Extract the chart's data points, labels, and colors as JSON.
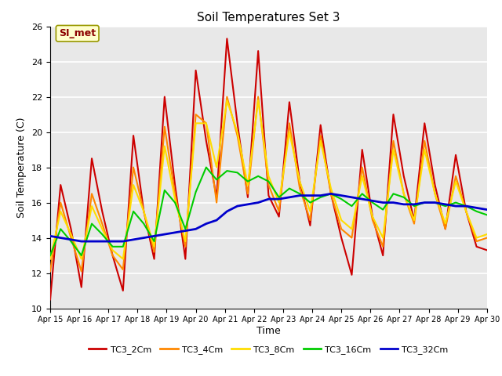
{
  "title": "Soil Temperatures Set 3",
  "xlabel": "Time",
  "ylabel": "Soil Temperature (C)",
  "ylim": [
    10,
    26
  ],
  "xlim": [
    0,
    15
  ],
  "annotation": "SI_met",
  "bg_color": "#e8e8e8",
  "plot_bg": "#e8e8e8",
  "series": {
    "TC3_2Cm": {
      "color": "#cc0000",
      "lw": 1.5
    },
    "TC3_4Cm": {
      "color": "#ff8800",
      "lw": 1.5
    },
    "TC3_8Cm": {
      "color": "#ffdd00",
      "lw": 1.5
    },
    "TC3_16Cm": {
      "color": "#00cc00",
      "lw": 1.5
    },
    "TC3_32Cm": {
      "color": "#0000cc",
      "lw": 2.0
    }
  },
  "xtick_labels": [
    "Apr 15",
    "Apr 16",
    "Apr 17",
    "Apr 18",
    "Apr 19",
    "Apr 20",
    "Apr 21",
    "Apr 22",
    "Apr 23",
    "Apr 24",
    "Apr 25",
    "Apr 26",
    "Apr 27",
    "Apr 28",
    "Apr 29",
    "Apr 30"
  ],
  "ytick_labels": [
    10,
    12,
    14,
    16,
    18,
    20,
    22,
    24,
    26
  ],
  "TC3_2Cm": [
    10.5,
    17.0,
    14.5,
    11.2,
    18.5,
    15.5,
    13.0,
    11.0,
    19.8,
    15.5,
    12.8,
    22.0,
    17.0,
    12.8,
    23.5,
    19.5,
    16.3,
    25.3,
    20.5,
    16.3,
    24.6,
    16.4,
    15.2,
    21.7,
    17.2,
    14.7,
    20.4,
    16.5,
    14.0,
    11.9,
    19.0,
    15.2,
    13.0,
    21.0,
    17.5,
    15.0,
    20.5,
    17.0,
    14.5,
    18.7,
    15.5,
    13.5,
    13.3
  ],
  "TC3_4Cm": [
    12.1,
    16.0,
    14.0,
    12.1,
    16.5,
    14.8,
    13.0,
    12.2,
    18.0,
    15.5,
    13.2,
    20.3,
    16.5,
    13.5,
    21.0,
    20.5,
    16.0,
    22.0,
    19.8,
    16.5,
    22.0,
    17.0,
    15.5,
    20.5,
    16.8,
    15.0,
    19.8,
    16.5,
    14.5,
    14.0,
    18.0,
    15.0,
    13.5,
    19.5,
    16.5,
    14.8,
    19.5,
    16.5,
    14.5,
    17.5,
    15.5,
    13.8,
    14.0
  ],
  "TC3_8Cm": [
    12.8,
    15.5,
    14.2,
    12.8,
    15.8,
    14.5,
    13.3,
    12.8,
    17.0,
    15.5,
    13.5,
    19.2,
    16.2,
    13.8,
    20.5,
    20.5,
    18.0,
    21.8,
    20.0,
    17.0,
    21.8,
    17.5,
    16.0,
    20.0,
    17.2,
    15.5,
    19.5,
    16.8,
    15.0,
    14.5,
    17.5,
    15.2,
    14.0,
    19.0,
    16.5,
    15.0,
    19.0,
    16.5,
    14.8,
    17.2,
    15.5,
    14.0,
    14.2
  ],
  "TC3_16Cm": [
    13.0,
    14.5,
    13.8,
    13.0,
    14.8,
    14.2,
    13.5,
    13.5,
    15.5,
    14.8,
    13.8,
    16.7,
    16.0,
    14.5,
    16.6,
    18.0,
    17.3,
    17.8,
    17.7,
    17.2,
    17.5,
    17.2,
    16.3,
    16.8,
    16.5,
    16.0,
    16.3,
    16.5,
    16.2,
    15.8,
    16.5,
    16.0,
    15.6,
    16.5,
    16.3,
    15.8,
    16.0,
    16.0,
    15.8,
    16.0,
    15.8,
    15.5,
    15.3
  ],
  "TC3_32Cm": [
    14.1,
    14.0,
    13.9,
    13.8,
    13.8,
    13.8,
    13.8,
    13.8,
    13.9,
    14.0,
    14.1,
    14.2,
    14.3,
    14.4,
    14.5,
    14.8,
    15.0,
    15.5,
    15.8,
    15.9,
    16.0,
    16.2,
    16.2,
    16.3,
    16.4,
    16.4,
    16.4,
    16.5,
    16.4,
    16.3,
    16.2,
    16.1,
    16.0,
    16.0,
    15.9,
    15.9,
    16.0,
    16.0,
    15.9,
    15.8,
    15.8,
    15.7,
    15.6
  ]
}
